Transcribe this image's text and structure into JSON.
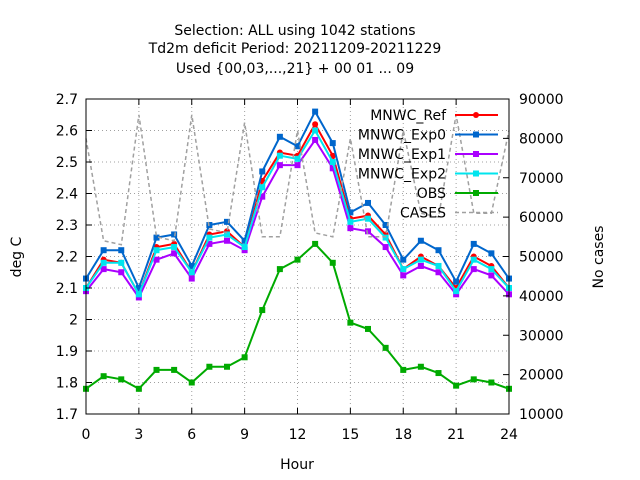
{
  "chart_data": {
    "type": "line",
    "title_lines": [
      "Selection: ALL using  1042 stations",
      "Td2m deficit   Period: 20211209-20211229",
      "Used {00,03,...,21} + 00 01 ... 09"
    ],
    "xlabel": "Hour",
    "ylabel": "deg C",
    "y2label": "No cases",
    "xlim": [
      0,
      24
    ],
    "ylim": [
      1.7,
      2.7
    ],
    "y2lim": [
      10000,
      90000
    ],
    "xticks": [
      "0",
      "3",
      "6",
      "9",
      "12",
      "15",
      "18",
      "21",
      "24"
    ],
    "yticks": [
      "1.7",
      "1.8",
      "1.9",
      "2",
      "2.1",
      "2.2",
      "2.3",
      "2.4",
      "2.5",
      "2.6",
      "2.7"
    ],
    "y2ticks": [
      "10000",
      "20000",
      "30000",
      "40000",
      "50000",
      "60000",
      "70000",
      "80000",
      "90000"
    ],
    "legend_position": "top-right",
    "grid": true,
    "x": [
      0,
      1,
      2,
      3,
      4,
      5,
      6,
      7,
      8,
      9,
      10,
      11,
      12,
      13,
      14,
      15,
      16,
      17,
      18,
      19,
      20,
      21,
      22,
      23,
      24
    ],
    "series": [
      {
        "name": "MNWC_Ref",
        "color": "#ff0000",
        "marker": "filled-circle",
        "axis": "y1",
        "values": [
          2.1,
          2.19,
          2.18,
          2.08,
          2.23,
          2.24,
          2.15,
          2.27,
          2.28,
          2.23,
          2.44,
          2.53,
          2.52,
          2.62,
          2.52,
          2.32,
          2.33,
          2.27,
          2.16,
          2.2,
          2.17,
          2.1,
          2.2,
          2.17,
          2.1
        ]
      },
      {
        "name": "MNWC_Exp0",
        "color": "#0066cc",
        "marker": "filled-square",
        "axis": "y1",
        "values": [
          2.13,
          2.22,
          2.22,
          2.1,
          2.26,
          2.27,
          2.17,
          2.3,
          2.31,
          2.25,
          2.47,
          2.58,
          2.55,
          2.66,
          2.56,
          2.34,
          2.37,
          2.3,
          2.19,
          2.25,
          2.22,
          2.12,
          2.24,
          2.21,
          2.13
        ]
      },
      {
        "name": "MNWC_Exp1",
        "color": "#aa00ff",
        "marker": "filled-square",
        "axis": "y1",
        "values": [
          2.09,
          2.16,
          2.15,
          2.07,
          2.19,
          2.21,
          2.13,
          2.24,
          2.25,
          2.22,
          2.39,
          2.49,
          2.49,
          2.57,
          2.48,
          2.29,
          2.28,
          2.23,
          2.14,
          2.17,
          2.15,
          2.08,
          2.16,
          2.14,
          2.08
        ]
      },
      {
        "name": "MNWC_Exp2",
        "color": "#00e5ee",
        "marker": "filled-square",
        "axis": "y1",
        "values": [
          2.1,
          2.18,
          2.18,
          2.08,
          2.22,
          2.23,
          2.15,
          2.26,
          2.27,
          2.23,
          2.42,
          2.52,
          2.51,
          2.6,
          2.5,
          2.31,
          2.32,
          2.26,
          2.16,
          2.19,
          2.17,
          2.09,
          2.19,
          2.16,
          2.1
        ]
      },
      {
        "name": "OBS",
        "color": "#00aa00",
        "marker": "filled-square",
        "axis": "y1",
        "values": [
          1.78,
          1.82,
          1.81,
          1.78,
          1.84,
          1.84,
          1.8,
          1.85,
          1.85,
          1.88,
          2.03,
          2.16,
          2.19,
          2.24,
          2.18,
          1.99,
          1.97,
          1.91,
          1.84,
          1.85,
          1.83,
          1.79,
          1.81,
          1.8,
          1.78
        ]
      },
      {
        "name": "CASES",
        "color": "#a0a0a0",
        "marker": "none",
        "dash": true,
        "axis": "y2",
        "values": [
          80000,
          54000,
          53000,
          86000,
          55000,
          54000,
          86000,
          57000,
          56000,
          84000,
          55000,
          55000,
          82000,
          56000,
          55000,
          80000,
          55000,
          55000,
          82000,
          61000,
          60000,
          86000,
          61000,
          61000,
          82000
        ]
      }
    ]
  }
}
